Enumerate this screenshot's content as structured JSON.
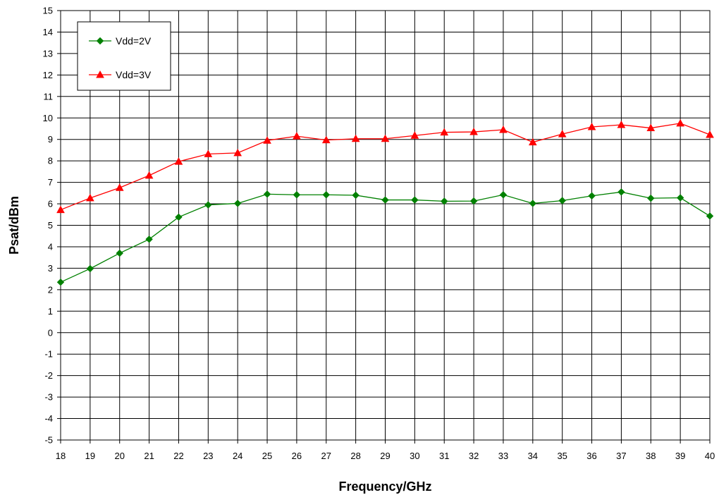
{
  "chart_data": {
    "type": "line",
    "xlabel": "Frequency/GHz",
    "ylabel": "Psat/dBm",
    "xlim": [
      18,
      40
    ],
    "ylim": [
      -5,
      15
    ],
    "x_ticks": [
      18,
      19,
      20,
      21,
      22,
      23,
      24,
      25,
      26,
      27,
      28,
      29,
      30,
      31,
      32,
      33,
      34,
      35,
      36,
      37,
      38,
      39,
      40
    ],
    "y_ticks": [
      -5,
      -4,
      -3,
      -2,
      -1,
      0,
      1,
      2,
      3,
      4,
      5,
      6,
      7,
      8,
      9,
      10,
      11,
      12,
      13,
      14,
      15
    ],
    "grid": true,
    "legend_position": "top-left",
    "x": [
      18,
      19,
      20,
      21,
      22,
      23,
      24,
      25,
      26,
      27,
      28,
      29,
      30,
      31,
      32,
      33,
      34,
      35,
      36,
      37,
      38,
      39,
      40
    ],
    "series": [
      {
        "name": "Vdd=2V",
        "color": "#008000",
        "marker": "diamond",
        "values": [
          2.35,
          2.98,
          3.7,
          4.35,
          5.38,
          5.95,
          6.02,
          6.45,
          6.42,
          6.42,
          6.4,
          6.18,
          6.18,
          6.12,
          6.13,
          6.42,
          6.02,
          6.15,
          6.37,
          6.55,
          6.26,
          6.28,
          5.43
        ]
      },
      {
        "name": "Vdd=3V",
        "color": "#ff0000",
        "marker": "triangle",
        "values": [
          5.72,
          6.27,
          6.75,
          7.32,
          7.97,
          8.32,
          8.37,
          8.95,
          9.15,
          8.97,
          9.03,
          9.03,
          9.18,
          9.33,
          9.35,
          9.45,
          8.87,
          9.25,
          9.58,
          9.68,
          9.53,
          9.75,
          9.22
        ]
      }
    ]
  }
}
